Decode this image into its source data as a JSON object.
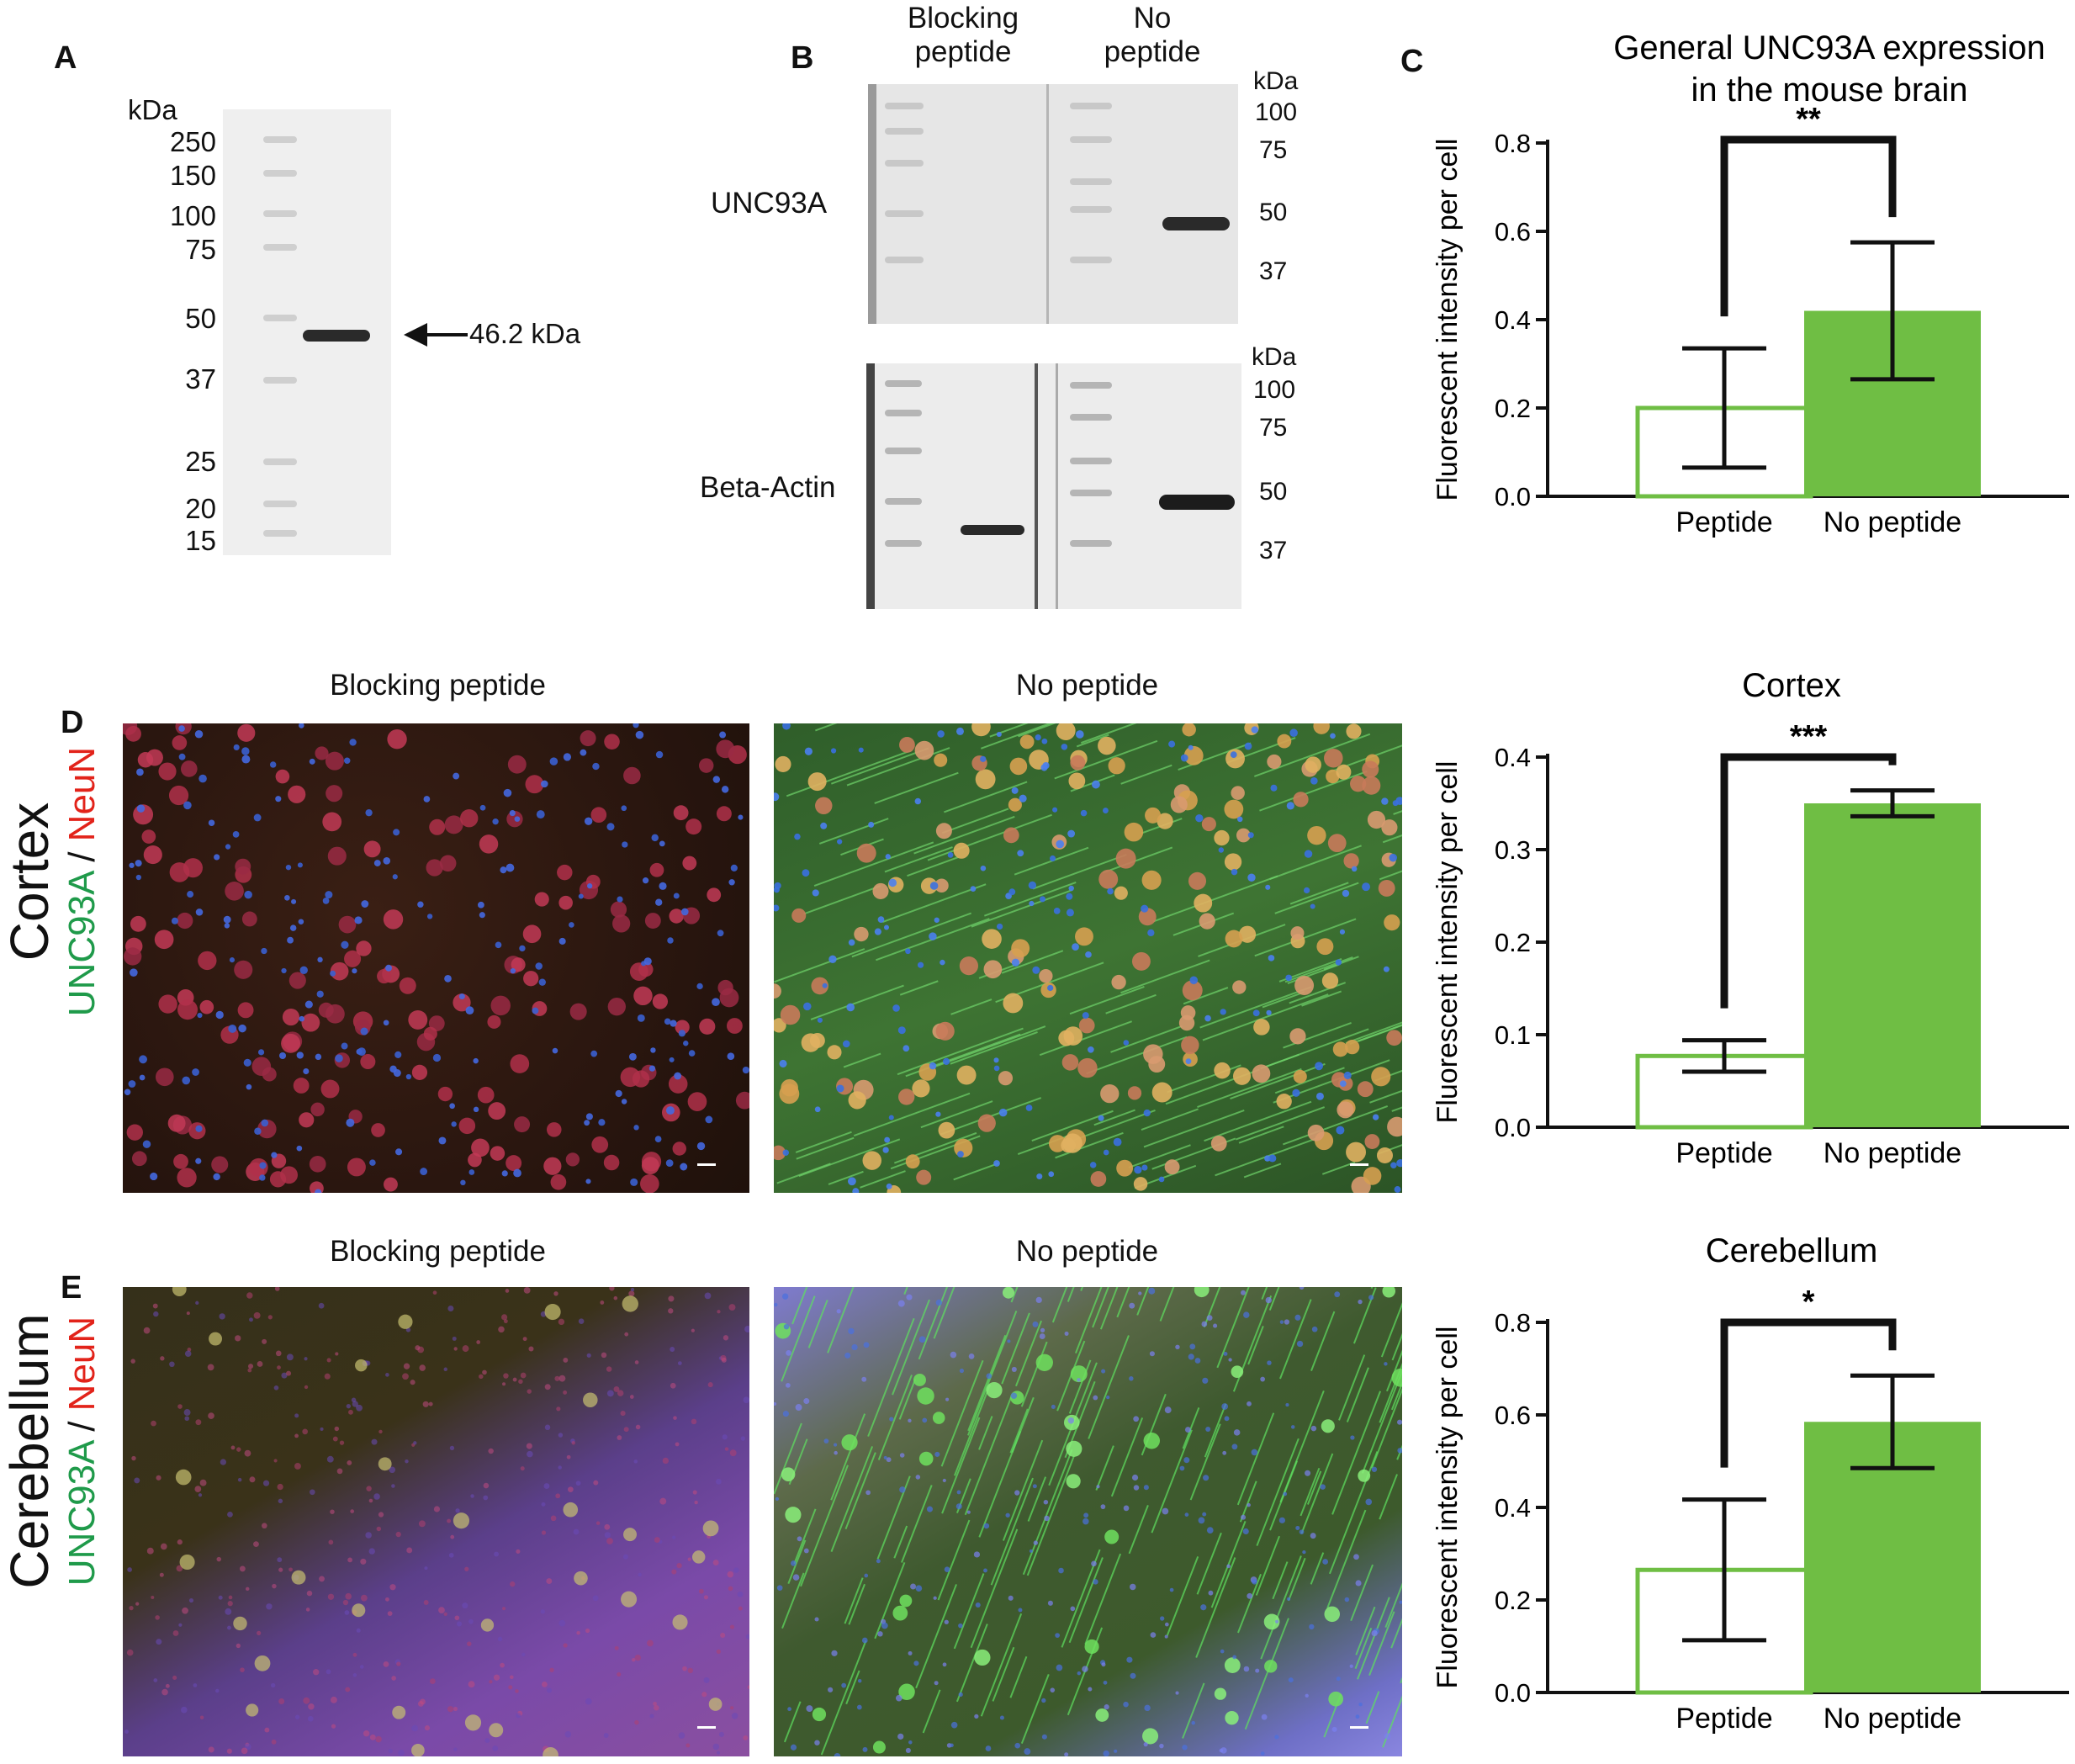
{
  "panels": {
    "a": {
      "letter": "A",
      "kda_label": "kDa",
      "markers": [
        "250",
        "150",
        "100",
        "75",
        "50",
        "37",
        "25",
        "20",
        "15"
      ],
      "band_label": "46.2 kDa"
    },
    "b": {
      "letter": "B",
      "col_blocking": "Blocking\npeptide",
      "col_no": "No\npeptide",
      "row_unc": "UNC93A",
      "row_actin": "Beta-Actin",
      "kda_label": "kDa",
      "markers_top": [
        "100",
        "75",
        "50",
        "37"
      ],
      "markers_bottom": [
        "100",
        "75",
        "50",
        "37"
      ]
    },
    "c": {
      "letter": "C"
    },
    "d": {
      "letter": "D",
      "title_left": "Blocking peptide",
      "title_right": "No peptide",
      "region": "Cortex",
      "stain_green": "UNC93A",
      "stain_sep": " / ",
      "stain_red": "NeuN"
    },
    "e": {
      "letter": "E",
      "title_left": "Blocking peptide",
      "title_right": "No peptide",
      "region": "Cerebellum",
      "stain_green": "UNC93A",
      "stain_sep": " / ",
      "stain_red": "NeuN"
    }
  },
  "colors": {
    "bar_green": "#6fbe44",
    "green_text": "#1f9a4a",
    "red_text": "#e2231a"
  },
  "chart_data": [
    {
      "type": "bar",
      "title": "General UNC93A expression in the mouse brain",
      "ylabel": "Fluorescent intensity per cell",
      "categories": [
        "Peptide",
        "No peptide"
      ],
      "values": [
        0.2,
        0.42
      ],
      "errors": [
        0.135,
        0.155
      ],
      "ylim": [
        0,
        0.8
      ],
      "yticks": [
        "0.0",
        "0.2",
        "0.4",
        "0.6",
        "0.8"
      ],
      "significance": "**"
    },
    {
      "type": "bar",
      "title": "Cortex",
      "ylabel": "Fluorescent intensity per cell",
      "categories": [
        "Peptide",
        "No peptide"
      ],
      "values": [
        0.077,
        0.35
      ],
      "errors": [
        0.017,
        0.014
      ],
      "ylim": [
        0,
        0.4
      ],
      "yticks": [
        "0.0",
        "0.1",
        "0.2",
        "0.3",
        "0.4"
      ],
      "significance": "***"
    },
    {
      "type": "bar",
      "title": "Cerebellum",
      "ylabel": "Fluorescent intensity per cell",
      "categories": [
        "Peptide",
        "No peptide"
      ],
      "values": [
        0.265,
        0.585
      ],
      "errors": [
        0.152,
        0.1
      ],
      "ylim": [
        0,
        0.8
      ],
      "yticks": [
        "0.0",
        "0.2",
        "0.4",
        "0.6",
        "0.8"
      ],
      "significance": "*"
    }
  ]
}
